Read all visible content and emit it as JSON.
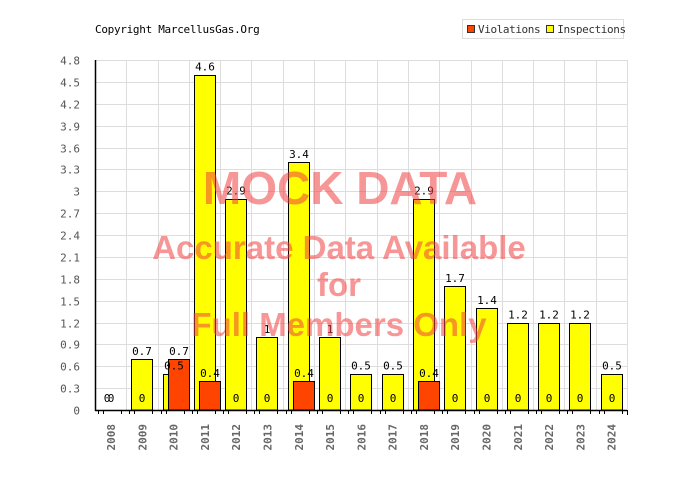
{
  "header": {
    "copyright": "Copyright MarcellusGas.Org"
  },
  "legend": [
    {
      "label": "Violations",
      "color": "#ff4400"
    },
    {
      "label": "Inspections",
      "color": "#ffff00"
    }
  ],
  "watermark": {
    "line1": "MOCK DATA",
    "line2": "Accurate Data Available",
    "line3": "for",
    "line4": "Full Members Only",
    "color": "#f04040"
  },
  "colors": {
    "violations": "#ff4400",
    "inspections": "#ffff00",
    "grid": "#dddddd",
    "axis": "#000000"
  },
  "chart_data": {
    "type": "bar",
    "title": "",
    "xlabel": "",
    "ylabel": "",
    "ylim": [
      0,
      4.8
    ],
    "yticks": [
      "0",
      "0.3",
      "0.6",
      "0.9",
      "1.2",
      "1.5",
      "1.8",
      "2.1",
      "2.4",
      "2.7",
      "3",
      "3.3",
      "3.6",
      "3.9",
      "4.2",
      "4.5",
      "4.8"
    ],
    "grid": true,
    "legend_position": "top-right",
    "categories": [
      "2008",
      "2009",
      "2010",
      "2011",
      "2012",
      "2013",
      "2014",
      "2015",
      "2016",
      "2017",
      "2018",
      "2019",
      "2020",
      "2021",
      "2022",
      "2023",
      "2024"
    ],
    "series": [
      {
        "name": "Inspections",
        "color": "#ffff00",
        "values": [
          0,
          0.7,
          0.5,
          4.6,
          2.9,
          1,
          3.4,
          1,
          0.5,
          0.5,
          2.9,
          1.7,
          1.4,
          1.2,
          1.2,
          1.2,
          0.5
        ],
        "labels": [
          "0",
          "0.7",
          "0.5",
          "4.6",
          "2.9",
          "1",
          "3.4",
          "1",
          "0.5",
          "0.5",
          "2.9",
          "1.7",
          "1.4",
          "1.2",
          "1.2",
          "1.2",
          "0.5"
        ]
      },
      {
        "name": "Violations",
        "color": "#ff4400",
        "values": [
          0,
          0,
          0.7,
          0.4,
          0,
          0,
          0.4,
          0,
          0,
          0,
          0.4,
          0,
          0,
          0,
          0,
          0,
          0
        ],
        "labels": [
          "0",
          "0",
          "0.7",
          "0.4",
          "0",
          "0",
          "0.4",
          "0",
          "0",
          "0",
          "0.4",
          "0",
          "0",
          "0",
          "0",
          "0",
          "0"
        ]
      }
    ]
  }
}
